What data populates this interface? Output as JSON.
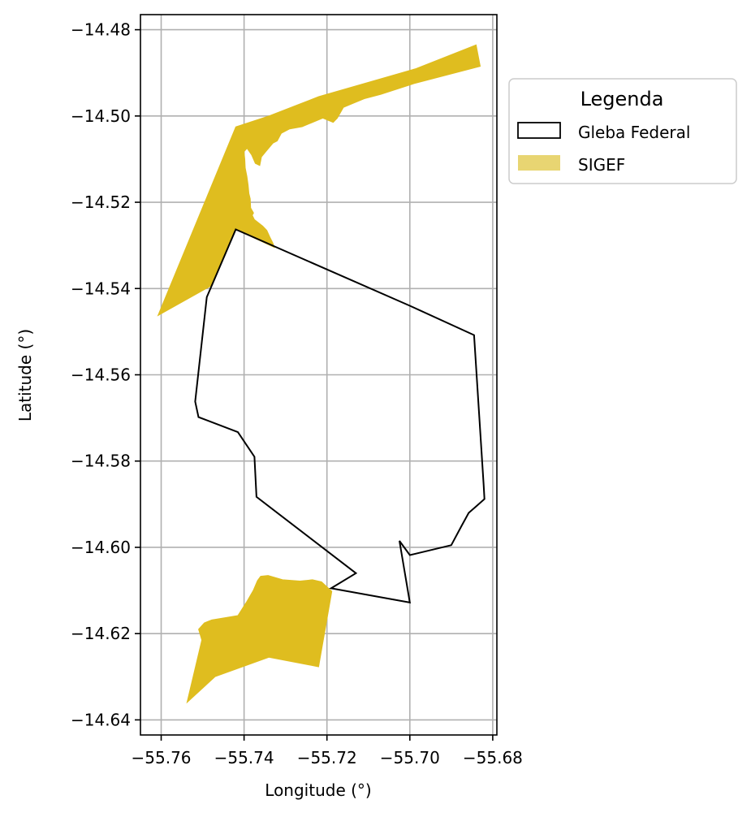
{
  "chart_data": {
    "type": "map",
    "title": "",
    "xlabel": "Longitude (°)",
    "ylabel": "Latitude (°)",
    "xlim": [
      -55.765,
      -55.679
    ],
    "ylim": [
      -14.6435,
      -14.4765
    ],
    "grid": true,
    "x_ticks": [
      -55.76,
      -55.74,
      -55.72,
      -55.7,
      -55.68
    ],
    "x_tick_labels": [
      "−55.76",
      "−55.74",
      "−55.72",
      "−55.70",
      "−55.68"
    ],
    "y_ticks": [
      -14.48,
      -14.5,
      -14.52,
      -14.54,
      -14.56,
      -14.58,
      -14.6,
      -14.62,
      -14.64
    ],
    "y_tick_labels": [
      "−14.48",
      "−14.50",
      "−14.52",
      "−14.54",
      "−14.56",
      "−14.58",
      "−14.60",
      "−14.62",
      "−14.64"
    ],
    "legend": {
      "title": "Legenda",
      "placement": "outside-right-top",
      "entries": [
        {
          "label": "Gleba Federal",
          "style": "outline",
          "edge": "#000000",
          "fill": "#ffffff"
        },
        {
          "label": "SIGEF",
          "style": "fill",
          "fill": "#e8d572"
        }
      ]
    },
    "layers": [
      {
        "name": "SIGEF",
        "style": "fill",
        "fill": "#dfbd1f",
        "polygons": [
          [
            [
              -55.742,
              -14.5025
            ],
            [
              -55.734,
              -14.5
            ],
            [
              -55.722,
              -14.4955
            ],
            [
              -55.6985,
              -14.489
            ],
            [
              -55.684,
              -14.4835
            ],
            [
              -55.683,
              -14.4885
            ],
            [
              -55.699,
              -14.4925
            ],
            [
              -55.707,
              -14.495
            ],
            [
              -55.711,
              -14.496
            ],
            [
              -55.716,
              -14.498
            ],
            [
              -55.7175,
              -14.5005
            ],
            [
              -55.7185,
              -14.5015
            ],
            [
              -55.721,
              -14.5005
            ],
            [
              -55.726,
              -14.5025
            ],
            [
              -55.729,
              -14.503
            ],
            [
              -55.731,
              -14.504
            ],
            [
              -55.732,
              -14.5058
            ],
            [
              -55.733,
              -14.5063
            ],
            [
              -55.7345,
              -14.508
            ],
            [
              -55.7358,
              -14.5095
            ],
            [
              -55.7362,
              -14.5115
            ],
            [
              -55.7373,
              -14.511
            ],
            [
              -55.7382,
              -14.509
            ],
            [
              -55.7393,
              -14.5075
            ],
            [
              -55.74,
              -14.5083
            ],
            [
              -55.7398,
              -14.51
            ],
            [
              -55.7397,
              -14.512
            ],
            [
              -55.7393,
              -14.514
            ],
            [
              -55.739,
              -14.516
            ],
            [
              -55.7388,
              -14.518
            ],
            [
              -55.7385,
              -14.5192
            ],
            [
              -55.7384,
              -14.5213
            ],
            [
              -55.7377,
              -14.5225
            ],
            [
              -55.738,
              -14.523
            ],
            [
              -55.7375,
              -14.524
            ],
            [
              -55.7355,
              -14.5255
            ],
            [
              -55.7345,
              -14.5265
            ],
            [
              -55.7338,
              -14.528
            ],
            [
              -55.733,
              -14.5295
            ],
            [
              -55.7327,
              -14.5305
            ],
            [
              -55.742,
              -14.5263
            ],
            [
              -55.7478,
              -14.5393
            ],
            [
              -55.7608,
              -14.5463
            ]
          ],
          [
            [
              -55.7538,
              -14.636
            ],
            [
              -55.747,
              -14.63
            ],
            [
              -55.734,
              -14.6255
            ],
            [
              -55.722,
              -14.6277
            ],
            [
              -55.7188,
              -14.6102
            ],
            [
              -55.7213,
              -14.608
            ],
            [
              -55.7235,
              -14.6075
            ],
            [
              -55.7265,
              -14.6078
            ],
            [
              -55.7307,
              -14.6075
            ],
            [
              -55.7342,
              -14.6065
            ],
            [
              -55.736,
              -14.6067
            ],
            [
              -55.7368,
              -14.6077
            ],
            [
              -55.7378,
              -14.61
            ],
            [
              -55.7395,
              -14.6128
            ],
            [
              -55.7415,
              -14.6158
            ],
            [
              -55.7478,
              -14.6168
            ],
            [
              -55.7496,
              -14.6175
            ],
            [
              -55.751,
              -14.619
            ],
            [
              -55.7502,
              -14.6215
            ]
          ]
        ]
      },
      {
        "name": "Gleba Federal",
        "style": "outline",
        "edge": "#000000",
        "polygons": [
          [
            [
              -55.742,
              -14.5263
            ],
            [
              -55.7,
              -14.544
            ],
            [
              -55.6845,
              -14.5508
            ],
            [
              -55.6822,
              -14.5855
            ],
            [
              -55.682,
              -14.5888
            ],
            [
              -55.684,
              -14.5905
            ],
            [
              -55.6858,
              -14.592
            ],
            [
              -55.6875,
              -14.595
            ],
            [
              -55.69,
              -14.5995
            ],
            [
              -55.7,
              -14.6018
            ],
            [
              -55.7025,
              -14.5985
            ],
            [
              -55.7,
              -14.6128
            ],
            [
              -55.719,
              -14.6095
            ],
            [
              -55.713,
              -14.606
            ],
            [
              -55.737,
              -14.5883
            ],
            [
              -55.7375,
              -14.579
            ],
            [
              -55.7415,
              -14.5733
            ],
            [
              -55.751,
              -14.5698
            ],
            [
              -55.7518,
              -14.5662
            ],
            [
              -55.749,
              -14.542
            ]
          ]
        ]
      }
    ]
  }
}
